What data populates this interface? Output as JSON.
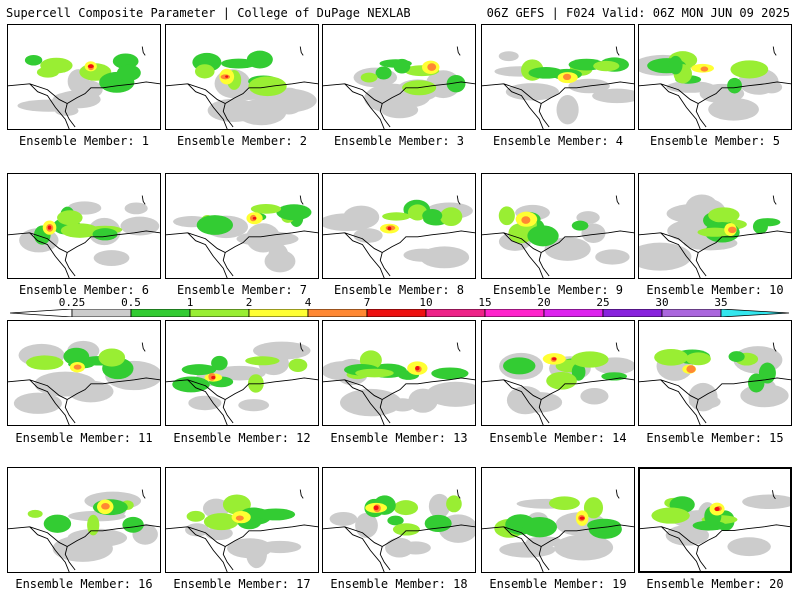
{
  "header": {
    "left_title": "Supercell Composite Parameter | College of DuPage NEXLAB",
    "right_title": "06Z GEFS | F024 Valid: 06Z MON JUN 09 2025"
  },
  "colorbar": {
    "labels": [
      "0.25",
      "0.5",
      "1",
      "2",
      "4",
      "7",
      "10",
      "15",
      "20",
      "25",
      "30",
      "35"
    ],
    "colors": [
      "#cccccc",
      "#33cc33",
      "#99ee33",
      "#ffff33",
      "#ff8833",
      "#ee1111",
      "#ee2288",
      "#ff22cc",
      "#dd22ee",
      "#8822dd",
      "#aa66dd",
      "#33e6ee"
    ]
  },
  "members": [
    {
      "label": "Ensemble Member: 1"
    },
    {
      "label": "Ensemble Member: 2"
    },
    {
      "label": "Ensemble Member: 3"
    },
    {
      "label": "Ensemble Member: 4"
    },
    {
      "label": "Ensemble Member: 5"
    },
    {
      "label": "Ensemble Member: 6"
    },
    {
      "label": "Ensemble Member: 7"
    },
    {
      "label": "Ensemble Member: 8"
    },
    {
      "label": "Ensemble Member: 9"
    },
    {
      "label": "Ensemble Member: 10"
    },
    {
      "label": "Ensemble Member: 11"
    },
    {
      "label": "Ensemble Member: 12"
    },
    {
      "label": "Ensemble Member: 13"
    },
    {
      "label": "Ensemble Member: 14"
    },
    {
      "label": "Ensemble Member: 15"
    },
    {
      "label": "Ensemble Member: 16"
    },
    {
      "label": "Ensemble Member: 17"
    },
    {
      "label": "Ensemble Member: 18"
    },
    {
      "label": "Ensemble Member: 19"
    },
    {
      "label": "Ensemble Member: 20"
    }
  ]
}
